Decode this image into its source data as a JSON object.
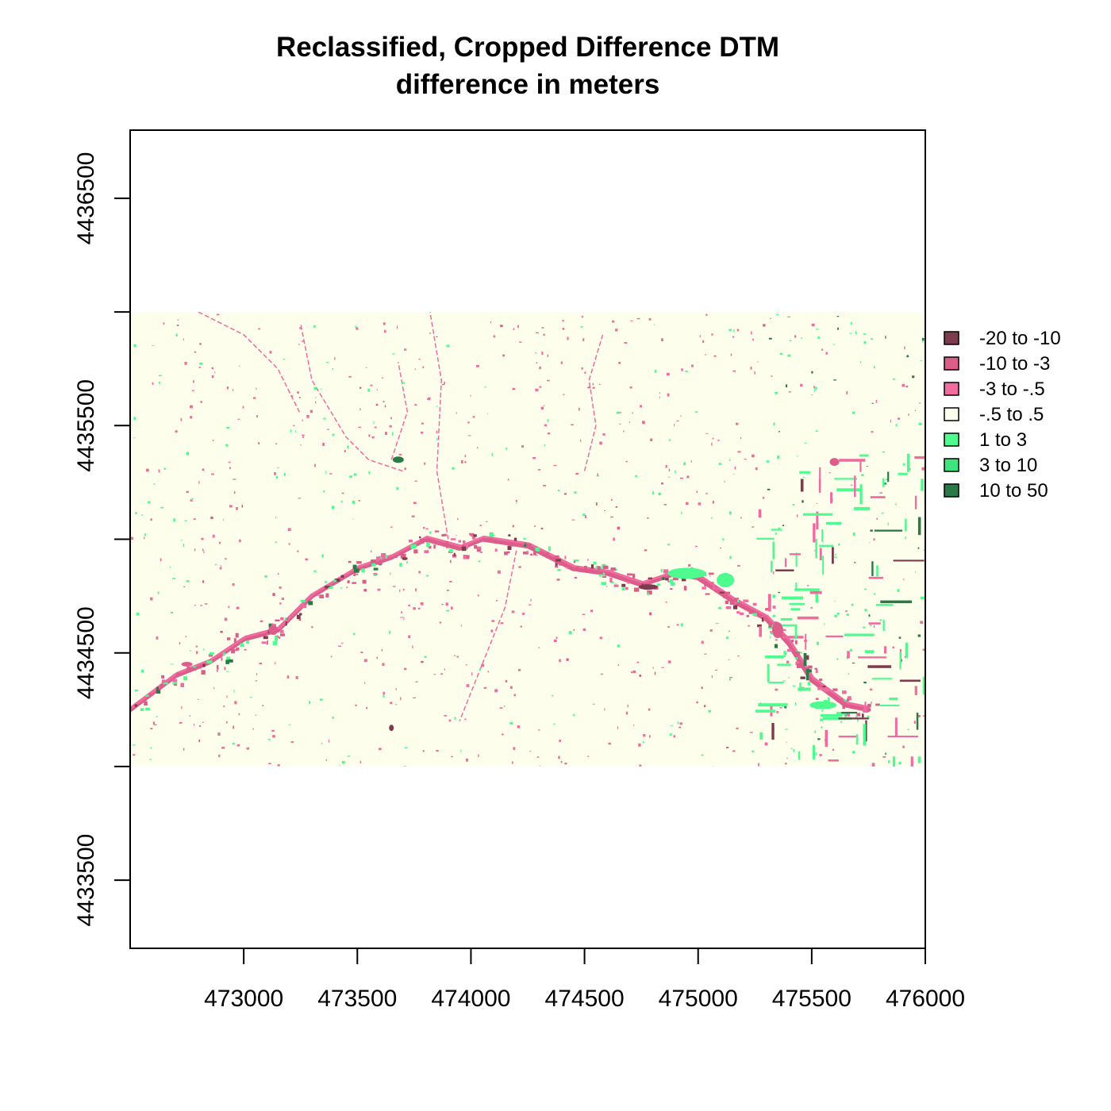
{
  "chart_data": {
    "type": "heatmap",
    "title": "Reclassified, Cropped Difference DTM",
    "subtitle": "difference in meters",
    "xlabel": "",
    "ylabel": "",
    "xlim": [
      472500,
      476000
    ],
    "ylim": [
      4433200,
      4436800
    ],
    "x_ticks": [
      "473000",
      "473500",
      "474000",
      "474500",
      "475000",
      "475500",
      "476000"
    ],
    "x_tick_values": [
      473000,
      473500,
      474000,
      474500,
      475000,
      475500,
      476000
    ],
    "y_ticks": [
      "4433500",
      "4434000",
      "4434500",
      "4435000",
      "4435500",
      "4436000",
      "4436500"
    ],
    "y_tick_values": [
      4433500,
      4434000,
      4434500,
      4435000,
      4435500,
      4436000,
      4436500
    ],
    "y_tick_labels_shown": [
      "4433500",
      "",
      "4434500",
      "",
      "4435500",
      "",
      "4436500"
    ],
    "raster_extent": {
      "xmin": 472500,
      "xmax": 476000,
      "ymin": 4434000,
      "ymax": 4436000
    },
    "legend_position": "right",
    "legend": [
      {
        "label": "-20 to -10",
        "color": "#7d3b4e"
      },
      {
        "label": "-10 to -3",
        "color": "#dc5d89"
      },
      {
        "label": "-3 to -.5",
        "color": "#f06ba0"
      },
      {
        "label": "-.5 to .5",
        "color": "#fffff0"
      },
      {
        "label": "1 to 3",
        "color": "#4dfb8e"
      },
      {
        "label": "3 to 10",
        "color": "#3ee47f"
      },
      {
        "label": "10 to 50",
        "color": "#2a7a48"
      }
    ],
    "background_class_color": "#fefeec",
    "river_path": [
      [
        472500,
        4434250
      ],
      [
        472700,
        4434400
      ],
      [
        472850,
        4434460
      ],
      [
        473000,
        4434560
      ],
      [
        473150,
        4434600
      ],
      [
        473300,
        4434750
      ],
      [
        473500,
        4434870
      ],
      [
        473650,
        4434920
      ],
      [
        473800,
        4435000
      ],
      [
        473950,
        4434960
      ],
      [
        474050,
        4435000
      ],
      [
        474250,
        4434970
      ],
      [
        474450,
        4434870
      ],
      [
        474600,
        4434850
      ],
      [
        474750,
        4434800
      ],
      [
        474900,
        4434850
      ],
      [
        475000,
        4434830
      ],
      [
        475150,
        4434730
      ],
      [
        475300,
        4434650
      ],
      [
        475400,
        4434540
      ],
      [
        475500,
        4434380
      ],
      [
        475650,
        4434270
      ],
      [
        475750,
        4434250
      ]
    ]
  }
}
